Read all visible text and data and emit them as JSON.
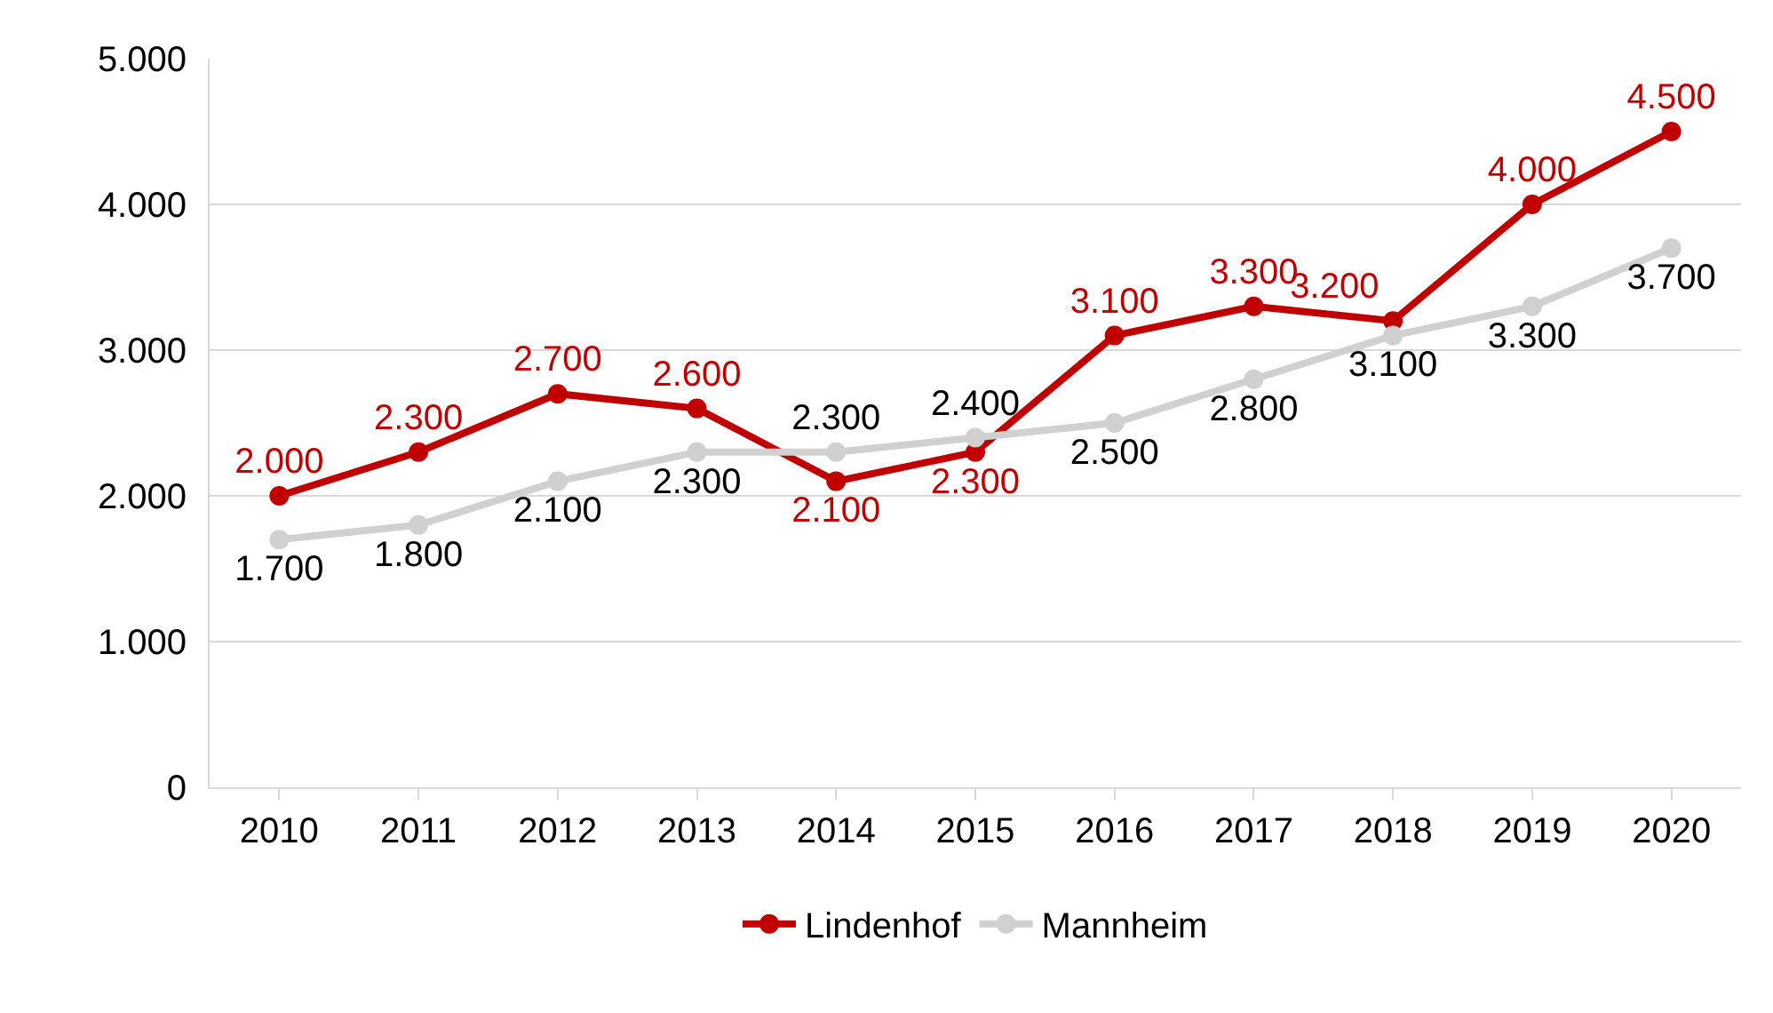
{
  "chart_data": {
    "type": "line",
    "categories": [
      "2010",
      "2011",
      "2012",
      "2013",
      "2014",
      "2015",
      "2016",
      "2017",
      "2018",
      "2019",
      "2020"
    ],
    "series": [
      {
        "name": "Lindenhof",
        "color": "#c00000",
        "values": [
          2000,
          2300,
          2700,
          2600,
          2100,
          2300,
          3100,
          3300,
          3200,
          4000,
          4500
        ],
        "value_labels": [
          "2.000",
          "2.300",
          "2.700",
          "2.600",
          "2.100",
          "2.300",
          "3.100",
          "3.300",
          "3.200",
          "4.000",
          "4.500"
        ]
      },
      {
        "name": "Mannheim",
        "color": "#d0d0d0",
        "values": [
          1700,
          1800,
          2100,
          2300,
          2300,
          2400,
          2500,
          2800,
          3100,
          3300,
          3700
        ],
        "value_labels": [
          "1.700",
          "1.800",
          "2.100",
          "2.300",
          "2.300",
          "2.400",
          "2.500",
          "2.800",
          "3.100",
          "3.300",
          "3.700"
        ]
      }
    ],
    "ylim": [
      0,
      5000
    ],
    "yticks": [
      0,
      {
        "value": 1000,
        "label": "1.000"
      },
      {
        "value": 2000,
        "label": "2.000"
      },
      {
        "value": 3000,
        "label": "3.000"
      },
      {
        "value": 4000,
        "label": "4.000"
      },
      {
        "value": 5000,
        "label": "5.000"
      }
    ],
    "grid": "y",
    "legend": "bottom",
    "marker": "circle",
    "line_style": "solid"
  }
}
